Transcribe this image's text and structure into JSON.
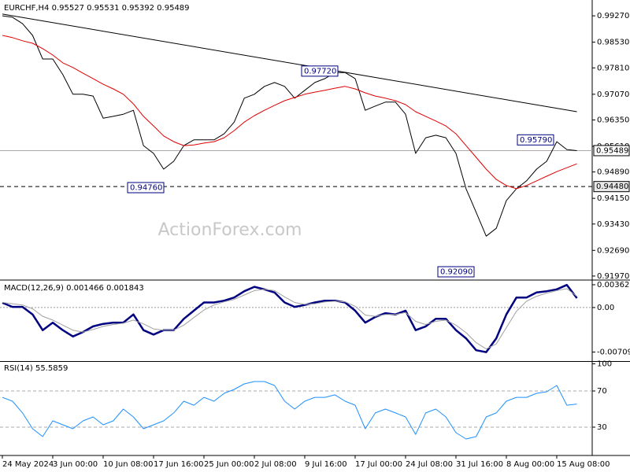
{
  "chart_data": [
    {
      "type": "line",
      "title": "EURCHF,H4  0.95527 0.95531 0.95392 0.95489",
      "watermark": "ActionForex.com",
      "categories": [
        "24 May 2024",
        null,
        null,
        null,
        null,
        "3 Jun 00:00",
        null,
        null,
        null,
        null,
        "10 Jun 08:00",
        null,
        null,
        null,
        null,
        "17 Jun 16:00",
        null,
        null,
        null,
        null,
        "25 Jun 00:00",
        null,
        null,
        null,
        null,
        "2 Jul 08:00",
        null,
        null,
        null,
        null,
        "9 Jul 16:00",
        null,
        null,
        null,
        null,
        "17 Jul 00:00",
        null,
        null,
        null,
        null,
        "24 Jul 08:00",
        null,
        null,
        null,
        null,
        "31 Jul 16:00",
        null,
        null,
        null,
        null,
        "8 Aug 00:00",
        null,
        null,
        null,
        null,
        "15 Aug 08:00",
        null,
        null
      ],
      "ylim": [
        0.9188,
        0.9967
      ],
      "yticks": [
        {
          "value": 0.9927,
          "label": "0.99270"
        },
        {
          "value": 0.9853,
          "label": "0.98530"
        },
        {
          "value": 0.9781,
          "label": "0.97810"
        },
        {
          "value": 0.9707,
          "label": "0.97070"
        },
        {
          "value": 0.9635,
          "label": "0.96350"
        },
        {
          "value": 0.9561,
          "label": "0.95610"
        },
        {
          "value": 0.9489,
          "label": "0.94890"
        },
        {
          "value": 0.9415,
          "label": "0.94150"
        },
        {
          "value": 0.9343,
          "label": "0.93430"
        },
        {
          "value": 0.9269,
          "label": "0.92690"
        },
        {
          "value": 0.9197,
          "label": "0.91970"
        }
      ],
      "series": [
        {
          "color": "#000000",
          "values": [
            0.9927,
            0.9923,
            0.9905,
            0.9872,
            0.9806,
            0.9806,
            0.9762,
            0.9707,
            0.9707,
            0.9702,
            0.964,
            0.9645,
            0.9651,
            0.9662,
            0.9563,
            0.9541,
            0.9497,
            0.9519,
            0.9563,
            0.9579,
            0.9579,
            0.9579,
            0.9596,
            0.9629,
            0.9696,
            0.9707,
            0.9729,
            0.974,
            0.9729,
            0.9696,
            0.9718,
            0.974,
            0.9751,
            0.9768,
            0.9768,
            0.9751,
            0.9662,
            0.9674,
            0.9685,
            0.9685,
            0.9651,
            0.9541,
            0.9585,
            0.9592,
            0.9585,
            0.9541,
            0.9442,
            0.9376,
            0.9309,
            0.9331,
            0.9409,
            0.9442,
            0.9464,
            0.9497,
            0.9519,
            0.9574,
            0.9552,
            0.95489
          ]
        },
        {
          "color": "#e00000",
          "values": [
            0.9872,
            0.9866,
            0.9857,
            0.985,
            0.9835,
            0.9817,
            0.9795,
            0.9782,
            0.9766,
            0.9751,
            0.9735,
            0.9722,
            0.9707,
            0.968,
            0.9645,
            0.9618,
            0.959,
            0.9574,
            0.9563,
            0.9565,
            0.957,
            0.9574,
            0.9585,
            0.9605,
            0.9629,
            0.9647,
            0.9662,
            0.9676,
            0.9689,
            0.9698,
            0.9707,
            0.9713,
            0.9718,
            0.9724,
            0.9729,
            0.9722,
            0.9711,
            0.9702,
            0.9696,
            0.9689,
            0.9678,
            0.9658,
            0.9645,
            0.9632,
            0.9618,
            0.9596,
            0.9563,
            0.953,
            0.9497,
            0.9468,
            0.9451,
            0.9442,
            0.9451,
            0.9464,
            0.9477,
            0.949,
            0.9501,
            0.9512
          ]
        }
      ],
      "trendline": {
        "color": "#000000",
        "values": [
          0.9932,
          0.9658
        ]
      },
      "hlines": [
        {
          "value": 0.95489,
          "label": "0.95489",
          "style": "solid"
        },
        {
          "value": 0.9448,
          "label": "0.94480",
          "style": "dashed"
        }
      ],
      "annotations": [
        {
          "value": 0.9772,
          "label": "0.97720"
        },
        {
          "value": 0.9476,
          "label": "0.94760"
        },
        {
          "value": 0.9209,
          "label": "0.92090"
        },
        {
          "value": 0.9579,
          "label": "0.95790"
        }
      ]
    },
    {
      "type": "line",
      "title": "MACD(12,26,9) 0.001466 0.001843",
      "ylim": [
        -0.0084,
        0.00425
      ],
      "yticks": [
        0.003628,
        {
          "value": 0,
          "label": "0.00"
        },
        -0.007093
      ],
      "zero_line": true,
      "series": [
        {
          "color": "#000080",
          "width": 2.5,
          "values": [
            0.00075,
            0.0001,
            0.0001,
            -0.0011,
            -0.0036,
            -0.0024,
            -0.0036,
            -0.0046,
            -0.0039,
            -0.003,
            -0.0026,
            -0.0024,
            -0.0024,
            -0.0011,
            -0.0036,
            -0.0043,
            -0.0036,
            -0.0036,
            -0.0018,
            -0.0005,
            0.0008,
            0.0008,
            0.0011,
            0.0016,
            0.0026,
            0.0033,
            0.0029,
            0.0024,
            0.0008,
            0.0001,
            0.0004,
            0.0008,
            0.0011,
            0.0011,
            0.0008,
            -0.0005,
            -0.0024,
            -0.0015,
            -0.0009,
            -0.0011,
            -0.0005,
            -0.0036,
            -0.003,
            -0.0018,
            -0.0018,
            -0.0036,
            -0.0049,
            -0.0068,
            -0.0071,
            -0.0049,
            -0.0011,
            0.0016,
            0.0016,
            0.0024,
            0.0026,
            0.0029,
            0.0036,
            0.0015
          ]
        },
        {
          "color": "#a0a0a0",
          "width": 1,
          "values": [
            0.0008,
            0.0006,
            0.0004,
            -0.0002,
            -0.0014,
            -0.002,
            -0.0028,
            -0.0036,
            -0.0039,
            -0.0035,
            -0.003,
            -0.0027,
            -0.0025,
            -0.002,
            -0.0026,
            -0.0034,
            -0.0036,
            -0.0036,
            -0.0028,
            -0.0016,
            -0.0004,
            0.0004,
            0.0009,
            0.0013,
            0.002,
            0.0027,
            0.0029,
            0.0027,
            0.0017,
            0.0008,
            0.0005,
            0.0006,
            0.0009,
            0.001,
            0.0009,
            0.0002,
            -0.0012,
            -0.0014,
            -0.0011,
            -0.0011,
            -0.0008,
            -0.0022,
            -0.0027,
            -0.0022,
            -0.002,
            -0.0028,
            -0.004,
            -0.0056,
            -0.0066,
            -0.0058,
            -0.0032,
            -0.0006,
            0.001,
            0.0018,
            0.0023,
            0.0027,
            0.003,
            0.0018
          ]
        }
      ]
    },
    {
      "type": "line",
      "title": "RSI(14) 55.5859",
      "ylim": [
        0,
        100
      ],
      "yticks": [
        100,
        70,
        30
      ],
      "level_lines": true,
      "series": [
        {
          "color": "#1e90ff",
          "width": 1,
          "values": [
            63,
            58.7,
            45.7,
            28.3,
            19.6,
            37,
            32.6,
            28.3,
            37,
            41.3,
            32.6,
            37,
            50,
            41.3,
            28.3,
            32.6,
            37,
            45.7,
            58.7,
            54.3,
            63,
            58.7,
            67.4,
            71.7,
            77.8,
            80.4,
            80.4,
            76.1,
            58.7,
            50,
            58.7,
            63,
            63,
            65.7,
            58.7,
            54.3,
            28.3,
            45.7,
            50,
            45.7,
            41.3,
            22,
            45.7,
            50,
            41.3,
            23.9,
            17,
            19.6,
            41.3,
            45.7,
            58.7,
            63,
            63,
            67.4,
            69.1,
            76.1,
            54.3,
            55.6
          ]
        }
      ]
    }
  ]
}
